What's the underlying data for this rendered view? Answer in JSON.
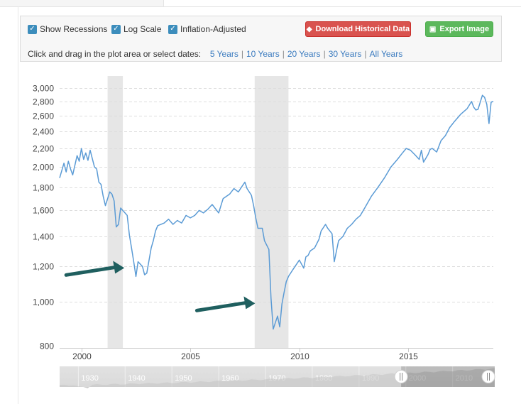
{
  "options": [
    {
      "label": "Show Recessions",
      "checked": true
    },
    {
      "label": "Log Scale",
      "checked": true
    },
    {
      "label": "Inflation-Adjusted",
      "checked": true
    }
  ],
  "buttons": {
    "download": "Download Historical Data",
    "export": "Export Image"
  },
  "date_range": {
    "prompt": "Click and drag in the plot area or select dates:",
    "links": [
      "5 Years",
      "10 Years",
      "20 Years",
      "30 Years",
      "All Years"
    ]
  },
  "navigator": {
    "decades": [
      "1930",
      "1940",
      "1950",
      "1960",
      "1970",
      "1980",
      "1990",
      "2000",
      "2010"
    ],
    "selection": [
      1999,
      2019
    ]
  },
  "colors": {
    "line": "#5b9bd5",
    "recession": "#e6e6e6",
    "arrow": "#1f5f5f",
    "grid": "#dddddd"
  },
  "chart_data": {
    "type": "line",
    "title": "",
    "xlabel": "",
    "ylabel": "",
    "log_scale": true,
    "grid": true,
    "xlim": [
      1999.0,
      2018.9
    ],
    "ylim": [
      790,
      3100
    ],
    "x_ticks": [
      2000,
      2005,
      2010,
      2015
    ],
    "y_ticks": [
      800,
      1000,
      1200,
      1400,
      1600,
      1800,
      2000,
      2200,
      2400,
      2600,
      2800,
      3000
    ],
    "y_tick_labels": [
      "800",
      "1,000",
      "1,200",
      "1,400",
      "1,600",
      "1,800",
      "2,000",
      "2,200",
      "2,400",
      "2,600",
      "2,800",
      "3,000"
    ],
    "x_tick_labels": [
      "2000",
      "2005",
      "2010",
      "2015"
    ],
    "recessions": [
      [
        2001.2,
        2001.9
      ],
      [
        2007.95,
        2009.5
      ]
    ],
    "annotations": [
      {
        "type": "arrow",
        "x": 2002.1,
        "y": 1200
      },
      {
        "type": "arrow",
        "x": 2008.1,
        "y": 1000
      }
    ],
    "series": [
      {
        "x": [
          1999.0,
          1999.2,
          1999.3,
          1999.4,
          1999.5,
          1999.6,
          1999.8,
          1999.9,
          2000.0,
          2000.1,
          2000.2,
          2000.3,
          2000.4,
          2000.6,
          2000.7,
          2000.8,
          2000.9,
          2001.0,
          2001.1,
          2001.3,
          2001.4,
          2001.5,
          2001.6,
          2001.7,
          2001.8,
          2001.9,
          2002.1,
          2002.2,
          2002.3,
          2002.4,
          2002.5,
          2002.6,
          2002.8,
          2002.9,
          2003.0,
          2003.2,
          2003.3,
          2003.4,
          2003.5,
          2003.8,
          2004.0,
          2004.2,
          2004.4,
          2004.6,
          2004.8,
          2005.0,
          2005.2,
          2005.4,
          2005.6,
          2005.8,
          2006.0,
          2006.3,
          2006.5,
          2006.8,
          2007.0,
          2007.2,
          2007.4,
          2007.5,
          2007.6,
          2007.8,
          2007.9,
          2008.0,
          2008.1,
          2008.3,
          2008.4,
          2008.6,
          2008.7,
          2008.8,
          2008.9,
          2009.0,
          2009.1,
          2009.2,
          2009.3,
          2009.4,
          2009.5,
          2009.7,
          2009.8,
          2010.0,
          2010.2,
          2010.3,
          2010.4,
          2010.5,
          2010.7,
          2010.9,
          2011.0,
          2011.2,
          2011.3,
          2011.4,
          2011.5,
          2011.6,
          2011.8,
          2012.0,
          2012.2,
          2012.4,
          2012.6,
          2012.8,
          2013.0,
          2013.3,
          2013.6,
          2013.9,
          2014.2,
          2014.5,
          2014.7,
          2014.9,
          2015.1,
          2015.3,
          2015.5,
          2015.6,
          2015.7,
          2015.9,
          2016.0,
          2016.1,
          2016.3,
          2016.5,
          2016.7,
          2016.9,
          2017.1,
          2017.4,
          2017.7,
          2017.9,
          2018.0,
          2018.1,
          2018.2,
          2018.4,
          2018.5,
          2018.6,
          2018.7,
          2018.8,
          2018.9
        ],
        "values": [
          1890,
          2040,
          1950,
          2060,
          1980,
          1920,
          2120,
          2060,
          2200,
          2080,
          2150,
          2070,
          2180,
          2000,
          1980,
          1850,
          1830,
          1720,
          1640,
          1760,
          1740,
          1680,
          1470,
          1490,
          1620,
          1600,
          1560,
          1410,
          1320,
          1230,
          1140,
          1230,
          1200,
          1150,
          1160,
          1320,
          1370,
          1440,
          1480,
          1500,
          1530,
          1490,
          1520,
          1500,
          1560,
          1540,
          1560,
          1600,
          1580,
          1610,
          1650,
          1580,
          1700,
          1740,
          1790,
          1760,
          1820,
          1850,
          1790,
          1730,
          1640,
          1540,
          1460,
          1460,
          1370,
          1310,
          1020,
          870,
          900,
          930,
          880,
          990,
          1050,
          1110,
          1140,
          1180,
          1200,
          1240,
          1190,
          1260,
          1270,
          1300,
          1320,
          1380,
          1440,
          1490,
          1460,
          1440,
          1420,
          1230,
          1370,
          1400,
          1460,
          1490,
          1530,
          1560,
          1620,
          1720,
          1800,
          1890,
          2000,
          2080,
          2140,
          2200,
          2180,
          2130,
          2080,
          2180,
          2050,
          2130,
          2190,
          2200,
          2160,
          2290,
          2350,
          2450,
          2520,
          2620,
          2700,
          2800,
          2720,
          2680,
          2690,
          2890,
          2860,
          2760,
          2500,
          2790,
          2800
        ]
      }
    ]
  }
}
